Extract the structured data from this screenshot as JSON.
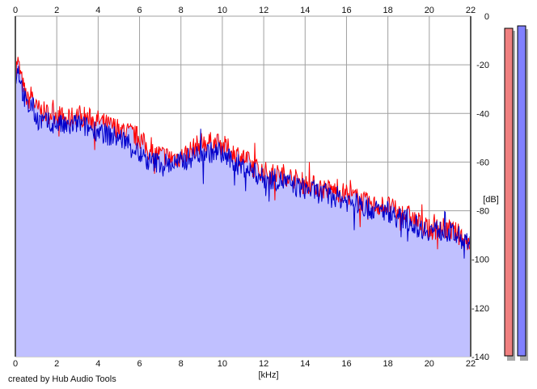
{
  "chart_data": {
    "type": "area",
    "xlabel": "[kHz]",
    "ylabel": "[dB]",
    "xlim": [
      0,
      22
    ],
    "ylim": [
      -140,
      0
    ],
    "x_ticks": [
      "0",
      "2",
      "4",
      "6",
      "8",
      "10",
      "12",
      "14",
      "16",
      "18",
      "20",
      "22"
    ],
    "y_ticks": [
      "0",
      "-20",
      "-40",
      "-60",
      "-80",
      "-100",
      "-120",
      "-140"
    ],
    "grid": true,
    "series": [
      {
        "color": "#ff0000",
        "x": [
          0,
          0.1,
          0.2,
          0.4,
          0.6,
          0.8,
          1.0,
          1.5,
          2.0,
          2.5,
          3.0,
          3.5,
          4.0,
          4.5,
          5.0,
          5.5,
          6.0,
          6.5,
          7.0,
          7.5,
          8.0,
          8.5,
          9.0,
          9.5,
          10.0,
          10.5,
          11.0,
          11.5,
          12.0,
          12.5,
          13.0,
          13.5,
          14.0,
          14.5,
          15.0,
          15.5,
          16.0,
          16.5,
          17.0,
          17.5,
          18.0,
          18.5,
          19.0,
          19.5,
          20.0,
          20.5,
          21.0,
          21.5,
          22.0
        ],
        "y": [
          -25,
          -18,
          -22,
          -30,
          -35,
          -32,
          -38,
          -40,
          -40,
          -43,
          -40,
          -42,
          -43,
          -45,
          -46,
          -48,
          -50,
          -56,
          -57,
          -58,
          -58,
          -55,
          -52,
          -52,
          -53,
          -56,
          -58,
          -62,
          -64,
          -65,
          -65,
          -67,
          -69,
          -70,
          -71,
          -72,
          -73,
          -75,
          -77,
          -78,
          -78,
          -81,
          -82,
          -85,
          -88,
          -87,
          -88,
          -90,
          -93
        ]
      },
      {
        "color": "#0000cc",
        "x": [
          0,
          0.1,
          0.2,
          0.4,
          0.6,
          0.8,
          1.0,
          1.5,
          2.0,
          2.5,
          3.0,
          3.5,
          4.0,
          4.5,
          5.0,
          5.5,
          6.0,
          6.5,
          7.0,
          7.5,
          8.0,
          8.5,
          9.0,
          9.5,
          10.0,
          10.5,
          11.0,
          11.5,
          12.0,
          12.5,
          13.0,
          13.5,
          14.0,
          14.5,
          15.0,
          15.5,
          16.0,
          16.5,
          17.0,
          17.5,
          18.0,
          18.5,
          19.0,
          19.5,
          20.0,
          20.5,
          21.0,
          21.5,
          22.0
        ],
        "y": [
          -27,
          -20,
          -24,
          -33,
          -38,
          -36,
          -42,
          -44,
          -44,
          -46,
          -44,
          -46,
          -47,
          -49,
          -50,
          -52,
          -57,
          -60,
          -60,
          -61,
          -60,
          -58,
          -56,
          -56,
          -57,
          -60,
          -62,
          -64,
          -67,
          -67,
          -68,
          -70,
          -71,
          -72,
          -74,
          -74,
          -76,
          -77,
          -79,
          -80,
          -80,
          -83,
          -84,
          -87,
          -88,
          -88,
          -89,
          -91,
          -95
        ]
      }
    ]
  },
  "meters": {
    "left": {
      "color": "#f08080",
      "level_db": -5
    },
    "right": {
      "color": "#8080ff",
      "level_db": -4
    }
  },
  "fill_color": "#c0c0ff",
  "credit": "created by Hub Audio Tools"
}
